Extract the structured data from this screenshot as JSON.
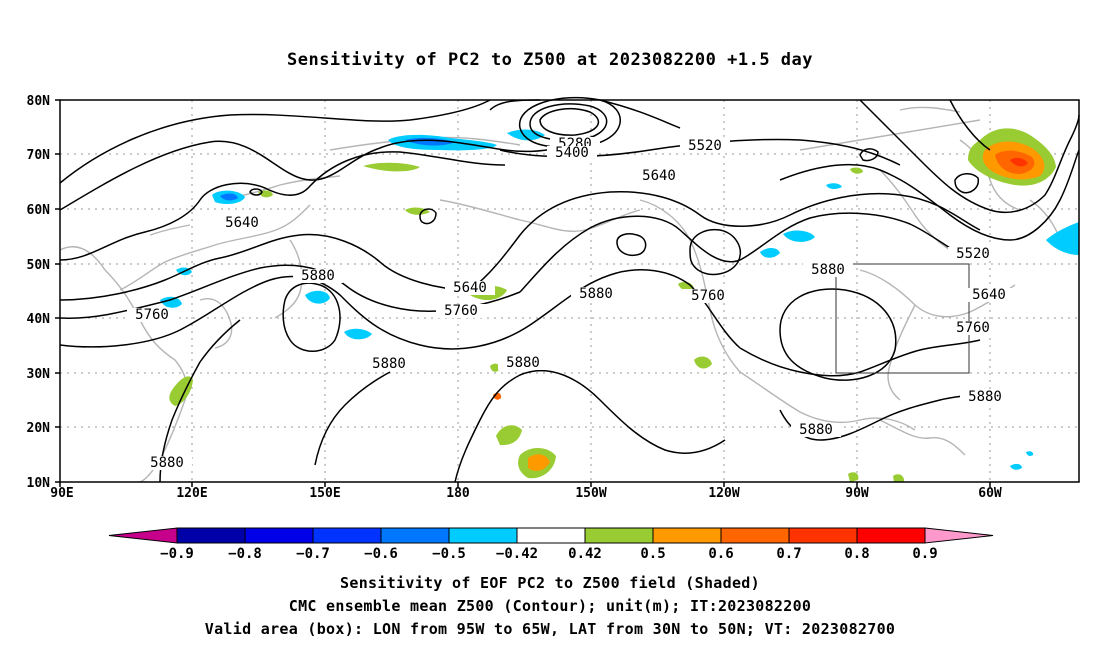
{
  "title": "Sensitivity of PC2 to Z500 at 2023082200 +1.5 day",
  "latitude_labels": [
    "80N",
    "70N",
    "60N",
    "50N",
    "40N",
    "30N",
    "20N",
    "10N"
  ],
  "longitude_labels": [
    "90E",
    "120E",
    "150E",
    "180",
    "150W",
    "120W",
    "90W",
    "60W"
  ],
  "contour_labels": [
    {
      "text": "5280"
    },
    {
      "text": "5400"
    },
    {
      "text": "5520"
    },
    {
      "text": "5640"
    },
    {
      "text": "5640"
    },
    {
      "text": "5880"
    },
    {
      "text": "5640"
    },
    {
      "text": "5760"
    },
    {
      "text": "5760"
    },
    {
      "text": "5880"
    },
    {
      "text": "5760"
    },
    {
      "text": "5880"
    },
    {
      "text": "5520"
    },
    {
      "text": "5640"
    },
    {
      "text": "5760"
    },
    {
      "text": "5880"
    },
    {
      "text": "5880"
    },
    {
      "text": "5880"
    },
    {
      "text": "5880"
    }
  ],
  "colorbar": {
    "colors": [
      "#c7008c",
      "#0000a8",
      "#0000e8",
      "#0033ff",
      "#0077ff",
      "#00ccff",
      "#ffffff",
      "#99cc33",
      "#ff9900",
      "#ff6600",
      "#ff3300",
      "#ff0000",
      "#ff99cc"
    ],
    "tick_labels": [
      "−0.9",
      "−0.8",
      "−0.7",
      "−0.6",
      "−0.5",
      "−0.42",
      "0.42",
      "0.5",
      "0.6",
      "0.7",
      "0.8",
      "0.9"
    ]
  },
  "captions": [
    "Sensitivity of EOF PC2 to Z500 field (Shaded)",
    "CMC ensemble mean Z500 (Contour); unit(m); IT:2023082200",
    "Valid area (box): LON from 95W to 65W, LAT from 30N to 50N; VT: 2023082700"
  ],
  "valid_area": {
    "lon_west": "95W",
    "lon_east": "65W",
    "lat_south": "30N",
    "lat_north": "50N"
  }
}
